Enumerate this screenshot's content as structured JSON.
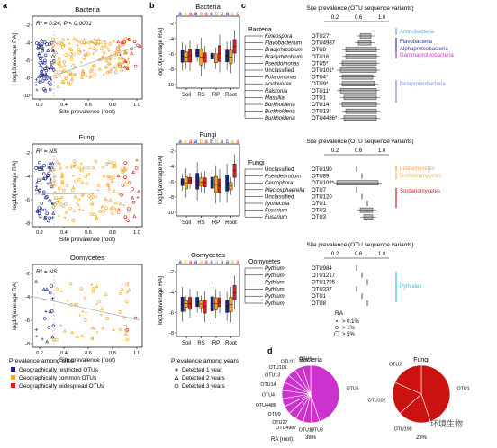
{
  "panel_letters": {
    "a": "a",
    "b": "b",
    "c": "c",
    "d": "d"
  },
  "colors": {
    "restricted": "#1a237e",
    "common": "#f5a623",
    "widespread": "#e41a1c",
    "Actinobacteria": "#6aa6d6",
    "Flavobacteria": "#2b3a8f",
    "Alphaproteobacteria": "#4a2f8a",
    "Gammaproteobacteria": "#c040c0",
    "Betaproteobacteria": "#7d8fd6",
    "Leotiomycetes": "#f0a050",
    "Dothideomycetes": "#e8b870",
    "Sordariomycetes": "#d02020",
    "Pythiales": "#40c0e0",
    "pie_bacteria": "#cc33cc",
    "pie_fungi": "#cc1111"
  },
  "panel_a": {
    "xlabel": "Site prevalence (root)",
    "ylabel": "log10[average RA]",
    "panels": [
      {
        "title": "Bacteria",
        "annotation": "R² = 0.24, P < 0.0001"
      },
      {
        "title": "Fungi",
        "annotation": "R² = NS"
      },
      {
        "title": "Oomycetes",
        "annotation": "R² = NS"
      }
    ],
    "yticks_top": [
      "-2",
      "-4",
      "-6",
      "-8",
      "-10"
    ],
    "yticks_mid": [
      "-2",
      "-4",
      "-6",
      "-8"
    ],
    "yticks_bot": [
      "-2",
      "-4",
      "-6",
      "-8"
    ],
    "xticks": [
      "0.2",
      "0.4",
      "0.6",
      "0.8",
      "1.0"
    ]
  },
  "panel_b": {
    "ylabel": "log10[average RA]",
    "categories": [
      "Soil",
      "RS",
      "RP",
      "Root"
    ],
    "panels": [
      {
        "title": "Bacteria",
        "letters": [
          "a",
          "a",
          "a",
          "a",
          "a",
          "a",
          "a",
          "b",
          "b",
          "a",
          "c",
          "c"
        ]
      },
      {
        "title": "Fungi",
        "letters": [
          "a",
          "a",
          "a",
          "a",
          "b",
          "a",
          "b",
          "b",
          "a",
          "c",
          "a",
          "a"
        ]
      },
      {
        "title": "Oomycetes",
        "letters": [
          "a",
          "a",
          "a",
          "a",
          "a",
          "a",
          "a",
          "a",
          "a",
          "a",
          "a",
          "a"
        ]
      }
    ],
    "yticks_top": [
      "-2",
      "-4",
      "-6",
      "-8",
      "-10"
    ],
    "yticks_mid": [
      "-2",
      "-4",
      "-6",
      "-8",
      "-10"
    ],
    "yticks_bot": [
      "-2",
      "-4",
      "-6",
      "-8"
    ]
  },
  "panel_c": {
    "header": "Site prevalence (OTU sequence variants)",
    "scale": [
      "0.2",
      "0.6",
      "1.0"
    ],
    "bacteria": {
      "group": "Bacteria",
      "taxa": [
        "Kineospora",
        "Flavobacterium",
        "Bradyrhizobium",
        "Bradyrhizobium",
        "Pseudomonas",
        "Unclassified",
        "Polaromonas",
        "Acidovorax",
        "Ralstonia",
        "Massilia",
        "Burkholderia",
        "Burkholderia",
        "Burkholderia"
      ],
      "otus": [
        "OTU27*",
        "OTU4987",
        "OTU8",
        "OTU16",
        "OTU5*",
        "OTU101*",
        "OTU4*",
        "OTU9*",
        "OTU11*",
        "OTU1",
        "OTU14*",
        "OTU13*",
        "OTU4486*"
      ],
      "classes": [
        "Actinobacteria",
        "Flavobacteria",
        "Alphaproteobacteria",
        "Gammaproteobacteria",
        "Betaproteobacteria"
      ]
    },
    "fungi": {
      "group": "Fungi",
      "taxa": [
        "Unclassified",
        "Pseudeurotium",
        "Cercophora",
        "Plectosphaerella",
        "Unclassified",
        "Ilyonectria",
        "Fusarium",
        "Fusarium"
      ],
      "otus": [
        "OTU190",
        "OTU89",
        "OTU102*",
        "OTU7",
        "OTU120",
        "OTU1",
        "OTU2",
        "OTU3"
      ],
      "classes": [
        "Leotiomycetes",
        "Dothideomycetes",
        "Sordariomycetes"
      ]
    },
    "oomycetes": {
      "group": "Oomycetes",
      "taxa": [
        "Pythium",
        "Pythium",
        "Pythium",
        "Pythium",
        "Pythium",
        "Pythium"
      ],
      "otus": [
        "OTU984",
        "OTU1217",
        "OTU1795",
        "OTU337",
        "OTU1",
        "OTU8"
      ],
      "classes": [
        "Pythiales"
      ]
    },
    "ra_legend": {
      "title": "RA",
      "items": [
        "> 0.1%",
        "> 1%",
        "> 5%"
      ]
    }
  },
  "panel_d": {
    "bacteria": {
      "title": "Bacteria",
      "labels": [
        "OTU5",
        "OTU8",
        "OTU16",
        "OTU4987",
        "OTU27",
        "OTU9",
        "OTU4486",
        "OTU4",
        "OTU14",
        "OTU13",
        "OTU101",
        "OTU11",
        "OTU1"
      ],
      "ra_text": "38%"
    },
    "fungi": {
      "title": "Fungi",
      "labels": [
        "OTU1",
        "OTU190",
        "OTU102",
        "OTU2"
      ],
      "ra_text": "23%"
    },
    "ra_label": "RA (root):"
  },
  "legend_sites": {
    "title": "Prevalence among sites",
    "items": [
      "Geographically restricted OTUs",
      "Geographically common OTUs",
      "Geographically widespread OTUs"
    ]
  },
  "legend_years": {
    "title": "Prevalence among years",
    "items": [
      "Detected 1 year",
      "Detected 2 years",
      "Detected 3 years"
    ]
  },
  "watermark": "环境生物"
}
